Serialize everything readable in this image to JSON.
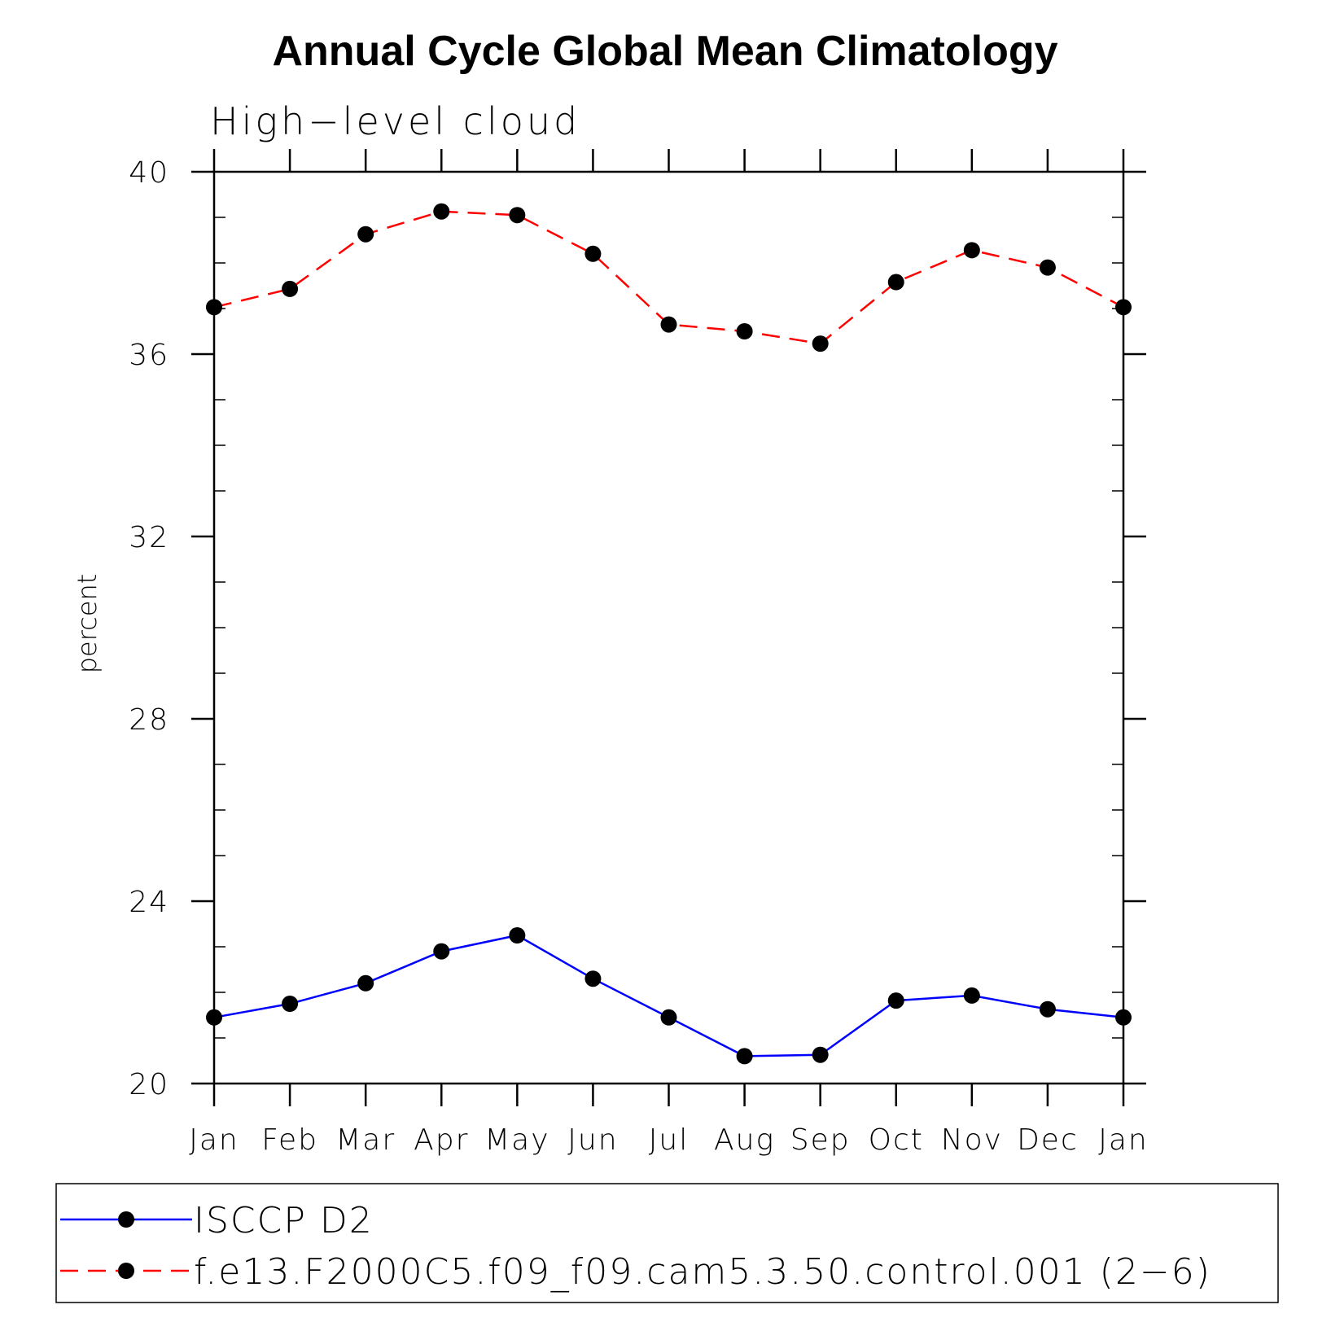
{
  "chart_data": {
    "type": "line",
    "title": "Annual Cycle Global Mean Climatology",
    "subtitle": "High−level cloud",
    "xlabel": "",
    "ylabel": "percent",
    "categories": [
      "Jan",
      "Feb",
      "Mar",
      "Apr",
      "May",
      "Jun",
      "Jul",
      "Aug",
      "Sep",
      "Oct",
      "Nov",
      "Dec",
      "Jan"
    ],
    "ylim": [
      20,
      40
    ],
    "yticks": [
      "20",
      "24",
      "28",
      "32",
      "36",
      "40"
    ],
    "series": [
      {
        "name": "ISCCP D2",
        "color": "#0000ff",
        "line_style": "solid",
        "marker": "filled-circle",
        "values": [
          21.45,
          21.75,
          22.2,
          22.9,
          23.25,
          22.3,
          21.45,
          20.6,
          20.63,
          21.82,
          21.93,
          21.63,
          21.45
        ]
      },
      {
        "name": "f.e13.F2000C5.f09_f09.cam5.3.50.control.001 (2−6)",
        "color": "#ff0000",
        "line_style": "dashed",
        "marker": "filled-circle",
        "values": [
          37.03,
          37.43,
          38.63,
          39.13,
          39.05,
          38.2,
          36.65,
          36.5,
          36.23,
          37.58,
          38.28,
          37.9,
          37.03
        ]
      }
    ],
    "grid": false,
    "legend_position": "bottom"
  }
}
